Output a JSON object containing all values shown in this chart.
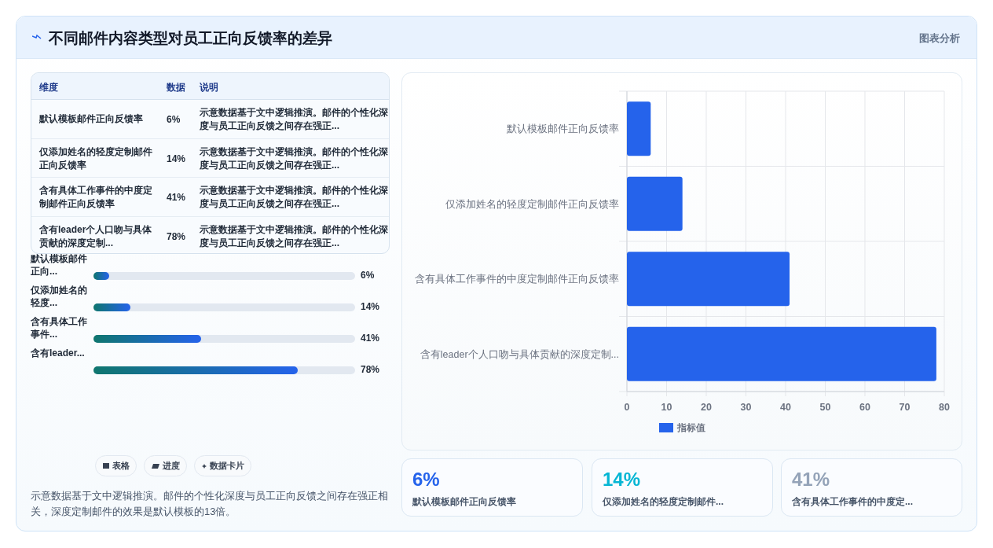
{
  "chart_data": {
    "type": "bar",
    "orientation": "horizontal",
    "title": "不同邮件内容类型对员工正向反馈率的差异",
    "categories": [
      "默认模板邮件正向反馈率",
      "仅添加姓名的轻度定制邮件正向反馈率",
      "含有具体工作事件的中度定制邮件正向反馈率",
      "含有leader个人口吻与具体贡献的深度定制..."
    ],
    "series": [
      {
        "name": "指标值",
        "color": "#2563eb",
        "values": [
          6,
          14,
          41,
          78
        ]
      }
    ],
    "xlim": [
      0,
      80
    ],
    "xticks": [
      0,
      10,
      20,
      30,
      40,
      50,
      60,
      70,
      80
    ],
    "grid": true,
    "legend": "bottom",
    "annotations": [
      "图表分析",
      "维度",
      "数据",
      "说明",
      "默认模板邮件正向反馈率",
      "仅添加姓名的轻度定制邮件正向反馈率",
      "含有具体工作事件的中度定制邮件正向反馈率",
      "含有leader个人口吻与具体贡献的深度定制...",
      "6%",
      "14%",
      "41%",
      "78%",
      "示意数据基于文中逻辑推演。邮件的个性化深度与员工正向反馈之间存在强正...",
      "示意数据基于文中逻辑推演。邮件的个性化深度与员工正向反馈之间存在强正...",
      "示意数据基于文中逻辑推演。邮件的个性化深度与员工正向反馈之间存在强正...",
      "示意数据基于文中逻辑推演。邮件的个性化深度与员工正向反馈之间存在强正...",
      "默认模板邮件正向...",
      "仅添加姓名的轻度...",
      "含有具体工作事件...",
      "含有leader...",
      "6%",
      "14%",
      "41%",
      "78%",
      "表格",
      "进度",
      "数据卡片",
      "示意数据基于文中逻辑推演。邮件的个性化深度与员工正向反馈之间存在强正相关，深度定制邮件的效果是默认模板的13倍。",
      "6%",
      "14%",
      "41%",
      "默认模板邮件正向反馈率",
      "仅添加姓名的轻度定制邮件...",
      "含有具体工作事件的中度定..."
    ]
  }
}
